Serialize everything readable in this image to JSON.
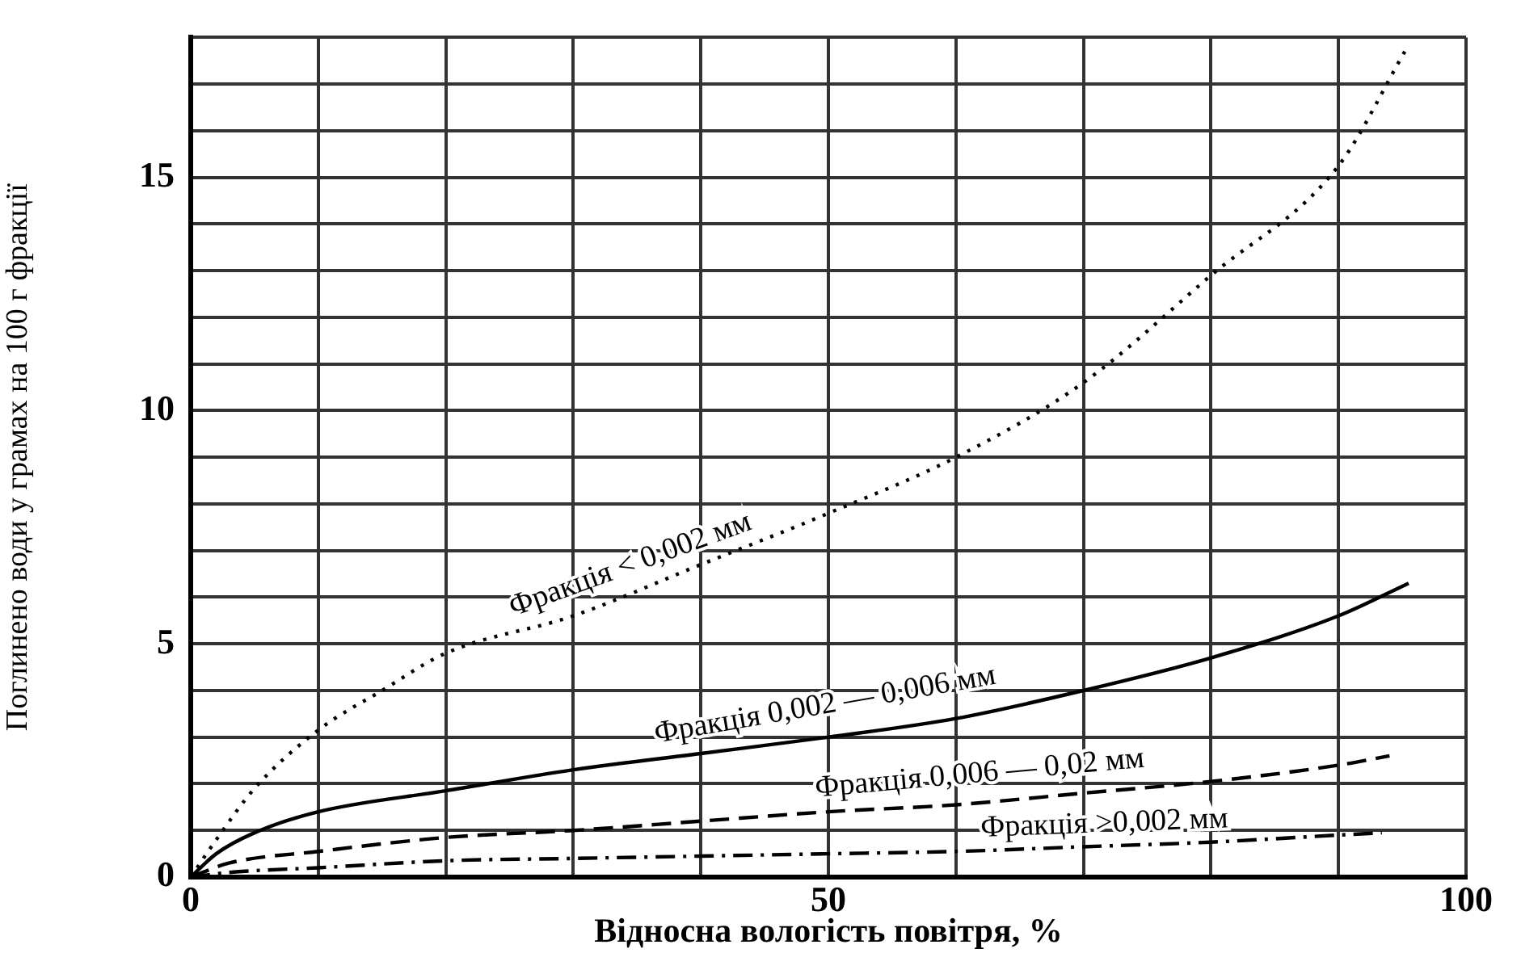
{
  "chart_data": {
    "type": "line",
    "xlabel": "Відносна вологість повітря, %",
    "ylabel": "Поглинено води у грамах на 100 г фракції",
    "xlim": [
      0,
      100
    ],
    "ylim": [
      0,
      18
    ],
    "xticks": [
      0,
      {
        "value": 10,
        "label": null
      },
      {
        "value": 20,
        "label": null
      },
      {
        "value": 30,
        "label": null
      },
      {
        "value": 40,
        "label": null
      },
      50,
      {
        "value": 60,
        "label": null
      },
      {
        "value": 70,
        "label": null
      },
      {
        "value": 80,
        "label": null
      },
      {
        "value": 90,
        "label": null
      },
      100
    ],
    "yticks": [
      0,
      {
        "value": 1,
        "label": null
      },
      {
        "value": 2,
        "label": null
      },
      {
        "value": 3,
        "label": null
      },
      {
        "value": 4,
        "label": null
      },
      5,
      {
        "value": 6,
        "label": null
      },
      {
        "value": 7,
        "label": null
      },
      {
        "value": 8,
        "label": null
      },
      {
        "value": 9,
        "label": null
      },
      10,
      {
        "value": 11,
        "label": null
      },
      {
        "value": 12,
        "label": null
      },
      {
        "value": 13,
        "label": null
      },
      {
        "value": 14,
        "label": null
      },
      15,
      {
        "value": 16,
        "label": null
      },
      {
        "value": 17,
        "label": null
      },
      {
        "value": 18,
        "label": null
      }
    ],
    "grid": true,
    "legend": false,
    "marker": "none",
    "series": [
      {
        "name": "Фракція < 0,002 мм",
        "color": "#000000",
        "line_style": "dotted",
        "x": [
          0,
          2,
          5,
          10,
          15,
          20,
          30,
          40,
          50,
          60,
          70,
          80,
          90,
          95.2
        ],
        "values": [
          0,
          0.8,
          1.9,
          3.15,
          4.0,
          4.8,
          5.6,
          6.7,
          7.8,
          9.0,
          10.6,
          12.9,
          15.25,
          17.7
        ]
      },
      {
        "name": "Фракція 0,002 — 0,006 мм",
        "color": "#000000",
        "line_style": "solid",
        "x": [
          0,
          2,
          5,
          10,
          20,
          30,
          40,
          50,
          60,
          70,
          80,
          90,
          95.5
        ],
        "values": [
          0,
          0.5,
          0.95,
          1.4,
          1.85,
          2.3,
          2.65,
          3.0,
          3.4,
          4.0,
          4.7,
          5.6,
          6.3
        ]
      },
      {
        "name": "Фракція 0,006 — 0,02 мм",
        "color": "#000000",
        "line_style": "dashed",
        "x": [
          0,
          3,
          10,
          20,
          30,
          40,
          50,
          60,
          70,
          80,
          90,
          94
        ],
        "values": [
          0,
          0.3,
          0.55,
          0.85,
          1.0,
          1.2,
          1.4,
          1.55,
          1.8,
          2.05,
          2.4,
          2.6
        ]
      },
      {
        "name": "Фракція >0,002 мм",
        "color": "#000000",
        "line_style": "dashdot",
        "x": [
          0,
          3,
          10,
          20,
          30,
          40,
          50,
          60,
          70,
          80,
          90,
          93.4
        ],
        "values": [
          0,
          0.1,
          0.2,
          0.35,
          0.4,
          0.45,
          0.5,
          0.55,
          0.65,
          0.75,
          0.9,
          0.95
        ]
      }
    ]
  }
}
